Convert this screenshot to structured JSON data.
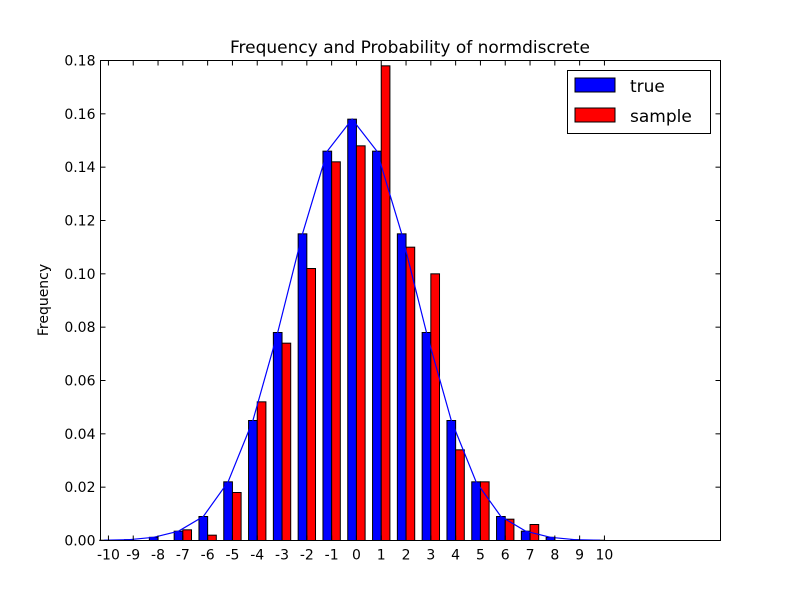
{
  "chart_data": {
    "type": "bar",
    "title": "Frequency and Probability of normdiscrete",
    "xlabel": "",
    "ylabel": "Frequency",
    "xlim": [
      -10.32,
      14.68
    ],
    "ylim": [
      0,
      0.18
    ],
    "grid": false,
    "legend_placement": "top-right",
    "x": [
      -10,
      -9,
      -8,
      -7,
      -6,
      -5,
      -4,
      -3,
      -2,
      -1,
      0,
      1,
      2,
      3,
      4,
      5,
      6,
      7,
      8,
      9,
      10
    ],
    "xtick_labels": [
      "-10",
      "-9",
      "-8",
      "-7",
      "-6",
      "-5",
      "-4",
      "-3",
      "-2",
      "-1",
      "0",
      "1",
      "2",
      "3",
      "4",
      "5",
      "6",
      "7",
      "8",
      "9",
      "10"
    ],
    "yticks": [
      0,
      0.02,
      0.04,
      0.06,
      0.08,
      0.1,
      0.12,
      0.14,
      0.16,
      0.18
    ],
    "ytick_labels": [
      "0.00",
      "0.02",
      "0.04",
      "0.06",
      "0.08",
      "0.10",
      "0.12",
      "0.14",
      "0.16",
      "0.18"
    ],
    "series": [
      {
        "name": "true",
        "color": "#0000ff",
        "values": [
          0.0001,
          0.0003,
          0.0012,
          0.0035,
          0.009,
          0.022,
          0.045,
          0.078,
          0.115,
          0.146,
          0.158,
          0.146,
          0.115,
          0.078,
          0.045,
          0.022,
          0.009,
          0.0035,
          0.0012,
          0.0003,
          0.0001
        ]
      },
      {
        "name": "sample",
        "color": "#ff0000",
        "values": [
          0,
          0,
          0,
          0.004,
          0.002,
          0.018,
          0.052,
          0.074,
          0.102,
          0.142,
          0.148,
          0.178,
          0.11,
          0.1,
          0.034,
          0.022,
          0.008,
          0.006,
          0,
          0,
          0
        ]
      }
    ],
    "line_color": "#0000ff"
  }
}
